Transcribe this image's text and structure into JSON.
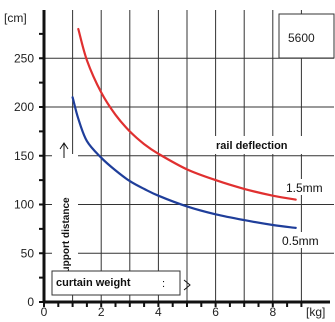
{
  "chart_data": {
    "type": "line",
    "y_unit": "[cm]",
    "x_unit": "[kg]",
    "x_ticks": [
      0,
      2,
      4,
      6,
      8
    ],
    "y_ticks": [
      0,
      50,
      100,
      150,
      200,
      250
    ],
    "xlim": [
      0,
      8.8
    ],
    "ylim": [
      0,
      290
    ],
    "grid": true,
    "box_label": "5600",
    "annotation_rail": "rail deflection",
    "annotation_weight": "curtain weight",
    "annotation_distance": "support distance",
    "series": [
      {
        "name": "0.5mm",
        "color": "#1f3e9a",
        "x": [
          1.0,
          1.2,
          1.5,
          2.0,
          2.5,
          3.0,
          3.5,
          4.0,
          5.0,
          6.0,
          7.0,
          8.0,
          8.8
        ],
        "y": [
          210,
          188,
          165,
          148,
          135,
          124,
          116,
          109,
          98,
          90,
          84,
          79,
          76
        ]
      },
      {
        "name": "1.5mm",
        "color": "#e03030",
        "x": [
          1.2,
          1.5,
          2.0,
          2.5,
          3.0,
          3.5,
          4.0,
          5.0,
          6.0,
          7.0,
          8.0,
          8.8
        ],
        "y": [
          280,
          248,
          215,
          192,
          175,
          162,
          152,
          136,
          125,
          116,
          109,
          105
        ]
      }
    ]
  }
}
